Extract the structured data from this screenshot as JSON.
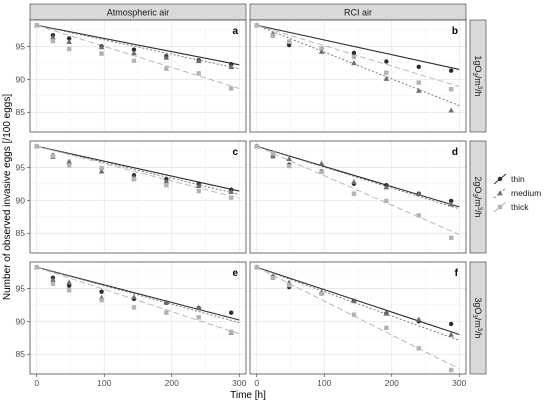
{
  "chart_data": {
    "type": "scatter",
    "xlabel": "Time [h]",
    "ylabel": "Number of observed invasive eggs [/100 eggs]",
    "xlim": [
      -10,
      310
    ],
    "ylim": [
      82,
      99
    ],
    "x_ticks": [
      0,
      100,
      200,
      300
    ],
    "y_ticks": [
      85,
      90,
      95
    ],
    "grid": true,
    "legend_position": "right",
    "columns": [
      "Atmospheric air",
      "RCI air"
    ],
    "rows": [
      "1gO3/m3/h",
      "2gO3/m3/h",
      "3gO3/m3/h"
    ],
    "series_styles": [
      {
        "name": "thin",
        "color": "#2b2b2b",
        "dash": "",
        "marker": "circle"
      },
      {
        "name": "medium",
        "color": "#6e6e6e",
        "dash": "2,2",
        "marker": "triangle"
      },
      {
        "name": "thick",
        "color": "#b3b3b3",
        "dash": "6,3",
        "marker": "square"
      }
    ],
    "x": [
      0,
      24,
      48,
      96,
      144,
      192,
      240,
      288
    ],
    "panels": [
      {
        "label": "a",
        "col": 0,
        "row": 0,
        "series": [
          {
            "name": "thin",
            "values": [
              98.2,
              96.7,
              96.2,
              95.0,
              94.5,
              93.5,
              92.9,
              92.3
            ],
            "fit": [
              98.2,
              92.2
            ]
          },
          {
            "name": "medium",
            "values": [
              98.2,
              96.4,
              95.7,
              94.9,
              94.0,
              93.3,
              92.8,
              91.9
            ],
            "fit": [
              98.2,
              91.6
            ]
          },
          {
            "name": "thick",
            "values": [
              98.2,
              95.8,
              94.6,
              93.9,
              92.8,
              91.6,
              90.9,
              88.6
            ],
            "fit": [
              98.2,
              88.6
            ]
          }
        ]
      },
      {
        "label": "b",
        "col": 1,
        "row": 0,
        "series": [
          {
            "name": "thin",
            "values": [
              98.2,
              96.8,
              95.2,
              94.6,
              94.0,
              92.7,
              91.9,
              91.3
            ],
            "fit": [
              98.2,
              91.5
            ]
          },
          {
            "name": "medium",
            "values": [
              98.2,
              96.9,
              95.7,
              94.2,
              92.5,
              90.1,
              88.3,
              85.3
            ],
            "fit": [
              98.2,
              86.0
            ]
          },
          {
            "name": "thick",
            "values": [
              98.2,
              96.6,
              95.7,
              94.7,
              93.4,
              91.0,
              89.5,
              88.5
            ],
            "fit": [
              98.2,
              88.9
            ]
          }
        ]
      },
      {
        "label": "c",
        "col": 0,
        "row": 1,
        "series": [
          {
            "name": "thin",
            "values": [
              98.2,
              96.8,
              95.5,
              94.8,
              93.8,
              93.2,
              92.5,
              91.6
            ],
            "fit": [
              98.2,
              91.4
            ]
          },
          {
            "name": "medium",
            "values": [
              98.2,
              96.6,
              95.9,
              94.4,
              93.5,
              92.9,
              92.2,
              91.3
            ],
            "fit": [
              98.2,
              90.9
            ]
          },
          {
            "name": "thick",
            "values": [
              98.2,
              96.7,
              95.3,
              94.9,
              93.2,
              92.3,
              91.4,
              90.4
            ],
            "fit": [
              98.2,
              90.3
            ]
          }
        ]
      },
      {
        "label": "d",
        "col": 1,
        "row": 1,
        "series": [
          {
            "name": "thin",
            "values": [
              98.2,
              96.8,
              95.4,
              94.4,
              92.5,
              92.3,
              91.0,
              89.9
            ],
            "fit": [
              98.2,
              89.0
            ]
          },
          {
            "name": "medium",
            "values": [
              98.2,
              96.7,
              96.3,
              95.6,
              92.8,
              92.0,
              91.0,
              89.4
            ],
            "fit": [
              98.2,
              88.7
            ]
          },
          {
            "name": "thick",
            "values": [
              98.2,
              97.1,
              95.2,
              94.3,
              91.0,
              89.9,
              87.7,
              84.3
            ],
            "fit": [
              98.2,
              84.8
            ]
          }
        ]
      },
      {
        "label": "e",
        "col": 0,
        "row": 2,
        "series": [
          {
            "name": "thin",
            "values": [
              98.2,
              96.6,
              95.4,
              94.5,
              93.4,
              92.8,
              92.0,
              91.3
            ],
            "fit": [
              98.2,
              90.2
            ]
          },
          {
            "name": "medium",
            "values": [
              98.2,
              96.3,
              95.9,
              93.6,
              93.7,
              92.9,
              92.1,
              88.3
            ],
            "fit": [
              98.2,
              89.8
            ]
          },
          {
            "name": "thick",
            "values": [
              98.2,
              95.7,
              94.7,
              93.2,
              92.1,
              91.3,
              90.6,
              88.4
            ],
            "fit": [
              98.2,
              88.1
            ]
          }
        ]
      },
      {
        "label": "f",
        "col": 1,
        "row": 2,
        "series": [
          {
            "name": "thin",
            "values": [
              98.2,
              96.8,
              95.2,
              94.2,
              93.1,
              91.2,
              90.0,
              89.6
            ],
            "fit": [
              98.2,
              88.0
            ]
          },
          {
            "name": "medium",
            "values": [
              98.2,
              96.8,
              95.9,
              94.5,
              93.1,
              91.2,
              90.3,
              88.0
            ],
            "fit": [
              98.2,
              87.1
            ]
          },
          {
            "name": "thick",
            "values": [
              98.2,
              96.6,
              95.5,
              94.2,
              91.0,
              89.0,
              85.9,
              82.6
            ],
            "fit": [
              98.2,
              82.8
            ]
          }
        ]
      }
    ]
  }
}
